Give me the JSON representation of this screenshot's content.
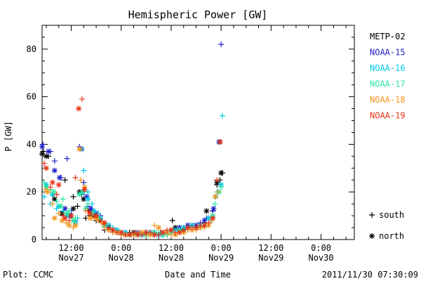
{
  "chart_data": {
    "type": "scatter",
    "title": "Hemispheric Power [GW]",
    "ylabel": "P [GW]",
    "xlabel": "Date and Time",
    "footer_left": "Plot: CCMC",
    "footer_right": "2011/11/30 07:30:09",
    "x_unit": "hours since 2011-11-27 00:00 UT",
    "xlim": [
      5,
      80
    ],
    "ylim": [
      0,
      90
    ],
    "y_ticks": [
      0,
      20,
      40,
      60,
      80
    ],
    "x_ticks": [
      {
        "x": 12,
        "line1": "12:00",
        "line2": "Nov27"
      },
      {
        "x": 24,
        "line1": "0:00",
        "line2": "Nov28"
      },
      {
        "x": 36,
        "line1": "12:00",
        "line2": "Nov28"
      },
      {
        "x": 48,
        "line1": "0:00",
        "line2": "Nov29"
      },
      {
        "x": 60,
        "line1": "12:00",
        "line2": "Nov29"
      },
      {
        "x": 72,
        "line1": "0:00",
        "line2": "Nov30"
      }
    ],
    "grid": false,
    "legend_position": "right",
    "marker_legend": [
      {
        "symbol": "+",
        "label": "south"
      },
      {
        "symbol": "*",
        "label": "north"
      }
    ],
    "series": [
      {
        "name": "METP-02",
        "color": "#000000",
        "south": [
          [
            5.3,
            37
          ],
          [
            6.5,
            35
          ],
          [
            7.6,
            19
          ],
          [
            9.5,
            11
          ],
          [
            10.5,
            25
          ],
          [
            12.5,
            18
          ],
          [
            13.5,
            14
          ],
          [
            14.5,
            19
          ],
          [
            15.5,
            9
          ],
          [
            16.5,
            10
          ],
          [
            18,
            8
          ],
          [
            20,
            4
          ],
          [
            22,
            3
          ],
          [
            24,
            2
          ],
          [
            26,
            3
          ],
          [
            28,
            2
          ],
          [
            30,
            3
          ],
          [
            32,
            2
          ],
          [
            33.5,
            3
          ],
          [
            35,
            2
          ],
          [
            36.3,
            8
          ],
          [
            38,
            5
          ],
          [
            40,
            4
          ],
          [
            42,
            5
          ],
          [
            44,
            7
          ],
          [
            45,
            9
          ],
          [
            46,
            12
          ],
          [
            47,
            23
          ],
          [
            47.7,
            25
          ],
          [
            48.3,
            28
          ]
        ],
        "north": [
          [
            5,
            36
          ],
          [
            6,
            35
          ],
          [
            8,
            17
          ],
          [
            9.8,
            11
          ],
          [
            12.5,
            13
          ],
          [
            14,
            20
          ],
          [
            15,
            17
          ],
          [
            16.5,
            12
          ],
          [
            17.5,
            10
          ],
          [
            19,
            8
          ],
          [
            21,
            5
          ],
          [
            23,
            3
          ],
          [
            25,
            2
          ],
          [
            27,
            3
          ],
          [
            29,
            2
          ],
          [
            31,
            3
          ],
          [
            33,
            2
          ],
          [
            35,
            3
          ],
          [
            37,
            5
          ],
          [
            39,
            4
          ],
          [
            41,
            6
          ],
          [
            43,
            6
          ],
          [
            44.5,
            12
          ],
          [
            47,
            24
          ],
          [
            48,
            28
          ]
        ]
      },
      {
        "name": "NOAA-15",
        "color": "#1f1fc8",
        "south": [
          [
            5.2,
            40
          ],
          [
            7,
            37
          ],
          [
            8,
            33
          ],
          [
            9.5,
            26
          ],
          [
            11,
            34
          ],
          [
            12,
            12
          ],
          [
            13,
            8
          ],
          [
            14,
            39
          ],
          [
            15,
            24
          ],
          [
            16,
            14
          ],
          [
            17,
            12
          ],
          [
            19,
            10
          ],
          [
            21,
            6
          ],
          [
            23,
            4
          ],
          [
            25,
            3
          ],
          [
            27,
            2
          ],
          [
            29,
            2
          ],
          [
            31,
            3
          ],
          [
            33,
            2
          ],
          [
            35,
            3
          ],
          [
            37,
            4
          ],
          [
            39,
            5
          ],
          [
            41,
            6
          ],
          [
            43,
            7
          ],
          [
            44.5,
            9
          ],
          [
            46,
            12
          ],
          [
            48,
            82
          ]
        ],
        "north": [
          [
            5,
            39
          ],
          [
            6.5,
            37
          ],
          [
            8,
            29
          ],
          [
            9.2,
            26
          ],
          [
            10.5,
            13
          ],
          [
            11.8,
            10
          ],
          [
            14.5,
            38
          ],
          [
            15.7,
            18
          ],
          [
            16.7,
            13
          ],
          [
            18,
            11
          ],
          [
            20,
            6
          ],
          [
            22,
            4
          ],
          [
            24,
            3
          ],
          [
            26,
            2
          ],
          [
            28,
            3
          ],
          [
            30,
            2
          ],
          [
            32,
            3
          ],
          [
            34,
            2
          ],
          [
            36,
            4
          ],
          [
            38,
            5
          ],
          [
            40,
            6
          ],
          [
            42,
            6
          ],
          [
            44,
            8
          ],
          [
            46.2,
            13
          ],
          [
            47.5,
            41
          ]
        ]
      },
      {
        "name": "NOAA-16",
        "color": "#00c8e6",
        "south": [
          [
            5.5,
            18
          ],
          [
            7,
            15
          ],
          [
            8.5,
            13
          ],
          [
            10,
            12
          ],
          [
            12,
            10
          ],
          [
            13.5,
            9
          ],
          [
            14.5,
            38
          ],
          [
            15,
            29
          ],
          [
            16,
            20
          ],
          [
            17,
            15
          ],
          [
            18.5,
            11
          ],
          [
            20,
            7
          ],
          [
            22,
            5
          ],
          [
            24,
            3
          ],
          [
            26,
            2
          ],
          [
            28,
            2
          ],
          [
            30,
            3
          ],
          [
            32,
            3
          ],
          [
            34,
            2
          ],
          [
            36,
            3
          ],
          [
            38,
            4
          ],
          [
            40,
            5
          ],
          [
            42,
            5
          ],
          [
            44,
            6
          ],
          [
            45.5,
            8
          ],
          [
            47,
            20
          ],
          [
            48.3,
            52
          ]
        ],
        "north": [
          [
            6,
            23
          ],
          [
            7.5,
            19
          ],
          [
            9,
            14
          ],
          [
            11,
            10
          ],
          [
            13,
            7
          ],
          [
            14.8,
            20
          ],
          [
            16,
            17
          ],
          [
            17.5,
            12
          ],
          [
            19,
            9
          ],
          [
            21,
            6
          ],
          [
            23,
            4
          ],
          [
            25,
            3
          ],
          [
            27,
            2
          ],
          [
            29,
            2
          ],
          [
            31,
            3
          ],
          [
            33,
            2
          ],
          [
            35,
            3
          ],
          [
            37,
            4
          ],
          [
            39,
            5
          ],
          [
            41,
            6
          ],
          [
            43,
            6
          ],
          [
            45,
            9
          ],
          [
            46.7,
            18
          ],
          [
            48,
            23
          ]
        ]
      },
      {
        "name": "NOAA-17",
        "color": "#28e6a0",
        "south": [
          [
            5.5,
            24
          ],
          [
            7,
            21
          ],
          [
            8.5,
            16
          ],
          [
            10,
            17
          ],
          [
            11.5,
            12
          ],
          [
            13,
            9
          ],
          [
            14.5,
            20
          ],
          [
            16,
            15
          ],
          [
            17.5,
            10
          ],
          [
            19,
            8
          ],
          [
            21,
            5
          ],
          [
            23,
            3
          ],
          [
            25,
            2
          ],
          [
            27,
            2
          ],
          [
            29,
            3
          ],
          [
            31,
            2
          ],
          [
            33,
            3
          ],
          [
            35,
            2
          ],
          [
            37,
            3
          ],
          [
            39,
            4
          ],
          [
            41,
            5
          ],
          [
            43,
            5
          ],
          [
            45,
            7
          ],
          [
            46.5,
            15
          ],
          [
            48,
            22
          ]
        ],
        "north": [
          [
            6,
            22
          ],
          [
            7.8,
            20
          ],
          [
            9.5,
            14
          ],
          [
            11,
            11
          ],
          [
            12.5,
            8
          ],
          [
            14,
            19
          ],
          [
            15.5,
            13
          ],
          [
            17,
            11
          ],
          [
            18.5,
            9
          ],
          [
            20,
            6
          ],
          [
            22,
            4
          ],
          [
            24,
            3
          ],
          [
            26,
            2
          ],
          [
            28,
            2
          ],
          [
            30,
            2
          ],
          [
            32,
            3
          ],
          [
            34,
            2
          ],
          [
            36,
            3
          ],
          [
            38,
            4
          ],
          [
            40,
            5
          ],
          [
            42,
            5
          ],
          [
            44,
            6
          ],
          [
            46,
            10
          ],
          [
            47.5,
            20
          ]
        ]
      },
      {
        "name": "NOAA-18",
        "color": "#f5961e",
        "south": [
          [
            5.8,
            21
          ],
          [
            7.5,
            15
          ],
          [
            9,
            11
          ],
          [
            10.8,
            7
          ],
          [
            12.5,
            5
          ],
          [
            14.3,
            25
          ],
          [
            15.5,
            12
          ],
          [
            17,
            9
          ],
          [
            18.5,
            8
          ],
          [
            20,
            5
          ],
          [
            22,
            3
          ],
          [
            24,
            2
          ],
          [
            26,
            2
          ],
          [
            28,
            3
          ],
          [
            30,
            2
          ],
          [
            32,
            6
          ],
          [
            34,
            3
          ],
          [
            36,
            2
          ],
          [
            38,
            3
          ],
          [
            40,
            4
          ],
          [
            42,
            4
          ],
          [
            44,
            5
          ],
          [
            45.8,
            8
          ],
          [
            47.2,
            20
          ]
        ],
        "north": [
          [
            6.3,
            20
          ],
          [
            8,
            9
          ],
          [
            9.8,
            8
          ],
          [
            11.5,
            6
          ],
          [
            13,
            6
          ],
          [
            14,
            38
          ],
          [
            15.2,
            22
          ],
          [
            16.5,
            9
          ],
          [
            18,
            9
          ],
          [
            19.5,
            7
          ],
          [
            21,
            4
          ],
          [
            23,
            3
          ],
          [
            25,
            2
          ],
          [
            27,
            2
          ],
          [
            29,
            3
          ],
          [
            31,
            2
          ],
          [
            33,
            5
          ],
          [
            35,
            3
          ],
          [
            37,
            2
          ],
          [
            39,
            3
          ],
          [
            41,
            4
          ],
          [
            43,
            5
          ],
          [
            45,
            6
          ],
          [
            46.6,
            18
          ]
        ]
      },
      {
        "name": "NOAA-19",
        "color": "#e63214",
        "south": [
          [
            5.5,
            32
          ],
          [
            7,
            22
          ],
          [
            8.5,
            19
          ],
          [
            10,
            10
          ],
          [
            11.5,
            8
          ],
          [
            13,
            26
          ],
          [
            14.6,
            59
          ],
          [
            16,
            12
          ],
          [
            17.5,
            10
          ],
          [
            19,
            8
          ],
          [
            21,
            5
          ],
          [
            23,
            3
          ],
          [
            25,
            2
          ],
          [
            27,
            3
          ],
          [
            29,
            2
          ],
          [
            31,
            3
          ],
          [
            33,
            2
          ],
          [
            35,
            4
          ],
          [
            37,
            3
          ],
          [
            39,
            4
          ],
          [
            41,
            5
          ],
          [
            43,
            6
          ],
          [
            45,
            7
          ],
          [
            47,
            25
          ]
        ],
        "north": [
          [
            6,
            30
          ],
          [
            7.5,
            24
          ],
          [
            9,
            23
          ],
          [
            10.5,
            9
          ],
          [
            12,
            10
          ],
          [
            13.8,
            55
          ],
          [
            15.2,
            21
          ],
          [
            16.5,
            11
          ],
          [
            18,
            10
          ],
          [
            20,
            7
          ],
          [
            22,
            4
          ],
          [
            24,
            3
          ],
          [
            26,
            2
          ],
          [
            28,
            2
          ],
          [
            30,
            3
          ],
          [
            32,
            2
          ],
          [
            34,
            3
          ],
          [
            36,
            4
          ],
          [
            38,
            3
          ],
          [
            40,
            5
          ],
          [
            42,
            5
          ],
          [
            44,
            6
          ],
          [
            46,
            9
          ],
          [
            47.8,
            41
          ]
        ]
      }
    ]
  }
}
